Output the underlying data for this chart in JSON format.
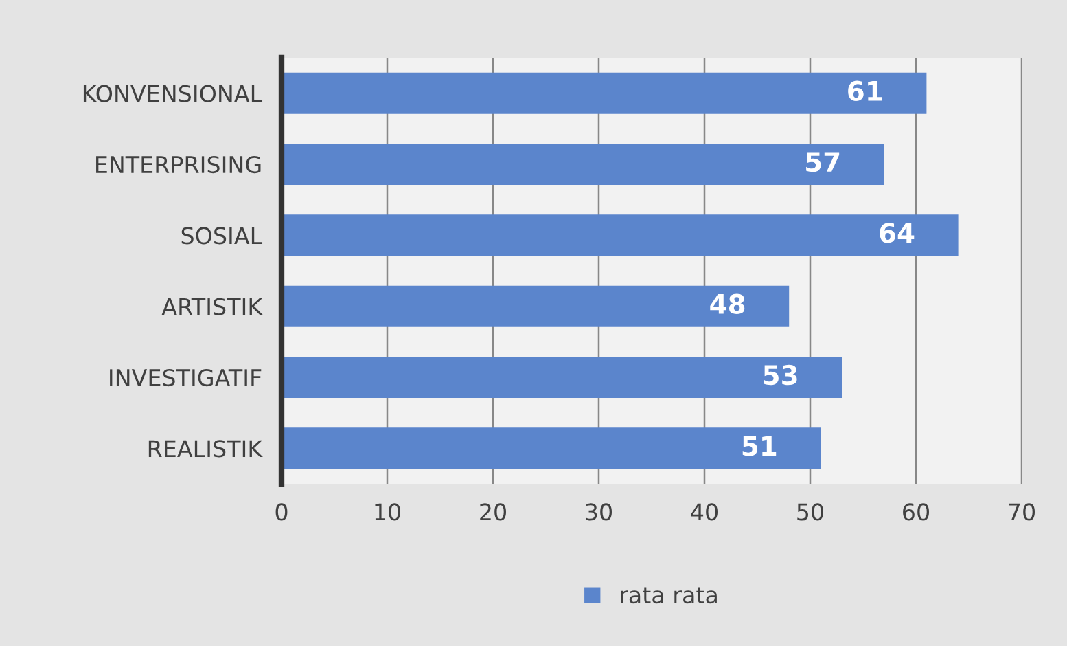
{
  "chart_data": {
    "type": "bar",
    "orientation": "horizontal",
    "categories": [
      "KONVENSIONAL",
      "ENTERPRISING",
      "SOSIAL",
      "ARTISTIK",
      "INVESTIGATIF",
      "REALISTIK"
    ],
    "series": [
      {
        "name": "rata rata",
        "color": "#5b85cc",
        "values": [
          61,
          57,
          64,
          48,
          53,
          51
        ]
      }
    ],
    "data_labels": true,
    "xlim": [
      0,
      70
    ],
    "xticks": [
      0,
      10,
      20,
      30,
      40,
      50,
      60,
      70
    ],
    "grid": "x",
    "legend": "bottom"
  }
}
